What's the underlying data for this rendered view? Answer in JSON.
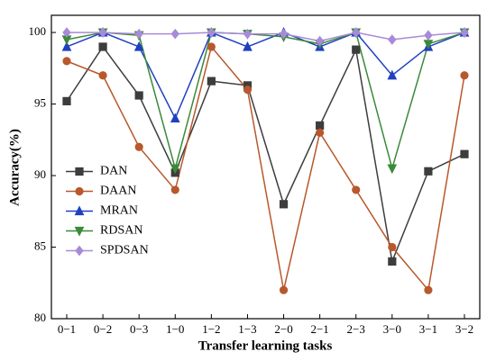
{
  "chart_data": {
    "type": "line",
    "x_label": "Transfer learning tasks",
    "y_label": "Accuracy(%)",
    "categories": [
      "0−1",
      "0−2",
      "0−3",
      "1−0",
      "1−2",
      "1−3",
      "2−0",
      "2−1",
      "2−3",
      "3−0",
      "3−1",
      "3−2"
    ],
    "series": [
      {
        "name": "DAN",
        "color": "#3d3d3d",
        "marker": "square",
        "values": [
          95.2,
          99.0,
          95.6,
          90.2,
          96.6,
          96.3,
          88.0,
          93.5,
          98.8,
          84.0,
          90.3,
          91.5
        ]
      },
      {
        "name": "DAAN",
        "color": "#b8582c",
        "marker": "circle",
        "values": [
          98.0,
          97.0,
          92.0,
          89.0,
          99.0,
          96.0,
          82.0,
          93.0,
          89.0,
          85.0,
          82.0,
          97.0
        ]
      },
      {
        "name": "MRAN",
        "color": "#2040c0",
        "marker": "triangle-up",
        "values": [
          99.0,
          100,
          99.0,
          94.0,
          100,
          99.0,
          100,
          99.0,
          100,
          97.0,
          99.0,
          100
        ]
      },
      {
        "name": "RDSAN",
        "color": "#3a8a3a",
        "marker": "triangle-down",
        "values": [
          99.5,
          100,
          99.8,
          90.5,
          100,
          99.9,
          99.7,
          99.2,
          100,
          90.5,
          99.2,
          100
        ]
      },
      {
        "name": "SPDSAN",
        "color": "#a88ad8",
        "marker": "diamond",
        "values": [
          100,
          100,
          99.9,
          99.9,
          100,
          99.9,
          99.9,
          99.4,
          100,
          99.5,
          99.8,
          100
        ]
      }
    ],
    "ylim": [
      80,
      101.2
    ],
    "yticks": [
      80,
      85,
      90,
      95,
      100
    ],
    "legend": "center-left"
  }
}
